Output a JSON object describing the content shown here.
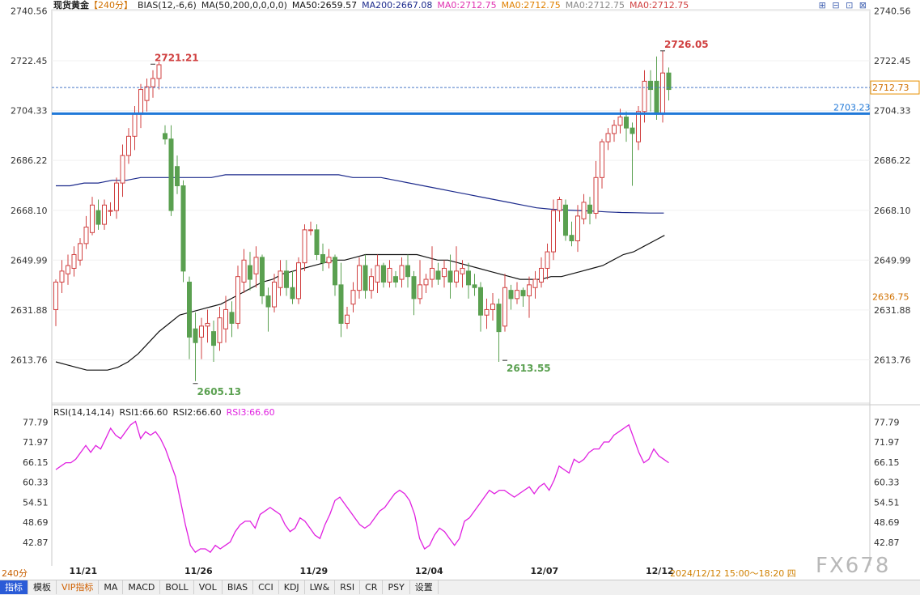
{
  "header": {
    "symbol": "现货黄金",
    "period": "【240分】",
    "bias": "BIAS(12,-6,6)",
    "ma_label": "MA(50,200,0,0,0,0)",
    "ma50": "MA50:2659.57",
    "ma200": "MA200:2667.08",
    "ma0_a": "MA0:2712.75",
    "ma0_b": "MA0:2712.75",
    "ma0_c": "MA0:2712.75",
    "ma0_d": "MA0:2712.75"
  },
  "rsi_header": {
    "label": "RSI(14,14,14)",
    "rsi1": "RSI1:66.60",
    "rsi2": "RSI2:66.60",
    "rsi3": "RSI3:66.60"
  },
  "period_label": "240分",
  "date_info": "2024/12/12 15:00～18:20 四",
  "watermark": "FX678",
  "tabs": [
    "指标",
    "模板",
    "VIP指标",
    "MA",
    "MACD",
    "BOLL",
    "VOL",
    "BIAS",
    "CCI",
    "KDJ",
    "LW&",
    "RSI",
    "CR",
    "PSY",
    "设置"
  ],
  "colors": {
    "up": "#d04040",
    "down": "#5aa050",
    "ma50": "#111111",
    "ma200": "#1c2a8c",
    "support": "#1f78d8",
    "rsi": "#e020e0"
  },
  "chart_data": [
    {
      "type": "candlestick",
      "title": "",
      "y_ticks": [
        "2740.56",
        "2722.45",
        "2704.33",
        "2686.22",
        "2668.10",
        "2649.99",
        "2631.88",
        "2613.76"
      ],
      "ylim": [
        2598,
        2741
      ],
      "x_labels": [
        "11/21",
        "11/26",
        "11/29",
        "12/04",
        "12/07",
        "12/12"
      ],
      "x_label_index": [
        3,
        22,
        41,
        60,
        79,
        98
      ],
      "annotations": [
        {
          "text": "2721.21",
          "index": 16,
          "value": 2721.21
        },
        {
          "text": "2726.05",
          "index": 100,
          "value": 2726.05
        },
        {
          "text": "2605.13",
          "index": 23,
          "value": 2605.13
        },
        {
          "text": "2613.55",
          "index": 74,
          "value": 2613.55
        }
      ],
      "last_price": "2712.73",
      "last_price_value": 2712.73,
      "support_level": "2703.23",
      "support_value": 2703.23,
      "ma_tag": "2636.75",
      "ma_tag_value": 2636.75,
      "candles": [
        [
          2632,
          2642,
          2626,
          2643
        ],
        [
          2642,
          2646,
          2638,
          2650
        ],
        [
          2645,
          2648,
          2641,
          2652
        ],
        [
          2647,
          2652,
          2644,
          2655
        ],
        [
          2650,
          2656,
          2648,
          2658
        ],
        [
          2656,
          2662,
          2654,
          2666
        ],
        [
          2660,
          2670,
          2659,
          2673
        ],
        [
          2668,
          2663,
          2661,
          2672
        ],
        [
          2663,
          2670,
          2661,
          2672
        ],
        [
          2668,
          2668,
          2666,
          2671
        ],
        [
          2668,
          2678,
          2665,
          2680
        ],
        [
          2678,
          2688,
          2673,
          2692
        ],
        [
          2688,
          2695,
          2685,
          2698
        ],
        [
          2695,
          2703,
          2690,
          2706
        ],
        [
          2703,
          2712,
          2698,
          2714
        ],
        [
          2708,
          2713,
          2704,
          2716
        ],
        [
          2713,
          2716,
          2709,
          2719
        ],
        [
          2716,
          2721,
          2712,
          2722
        ],
        [
          2696,
          2694,
          2692,
          2699
        ],
        [
          2694,
          2668,
          2666,
          2699
        ],
        [
          2684,
          2677,
          2674,
          2688
        ],
        [
          2677,
          2646,
          2642,
          2679
        ],
        [
          2642,
          2622,
          2614,
          2644
        ],
        [
          2625,
          2620,
          2606,
          2631
        ],
        [
          2622,
          2626,
          2614,
          2629
        ],
        [
          2626,
          2627,
          2620,
          2632
        ],
        [
          2624,
          2619,
          2613,
          2628
        ],
        [
          2620,
          2629,
          2617,
          2633
        ],
        [
          2625,
          2632,
          2620,
          2637
        ],
        [
          2631,
          2627,
          2622,
          2635
        ],
        [
          2627,
          2644,
          2625,
          2648
        ],
        [
          2642,
          2650,
          2638,
          2654
        ],
        [
          2648,
          2643,
          2639,
          2653
        ],
        [
          2645,
          2651,
          2640,
          2655
        ],
        [
          2651,
          2637,
          2634,
          2652
        ],
        [
          2637,
          2633,
          2624,
          2640
        ],
        [
          2633,
          2642,
          2631,
          2645
        ],
        [
          2640,
          2646,
          2637,
          2650
        ],
        [
          2646,
          2640,
          2637,
          2650
        ],
        [
          2640,
          2636,
          2634,
          2646
        ],
        [
          2636,
          2649,
          2634,
          2651
        ],
        [
          2649,
          2661,
          2646,
          2663
        ],
        [
          2661,
          2661,
          2659,
          2664
        ],
        [
          2661,
          2652,
          2650,
          2663
        ],
        [
          2652,
          2649,
          2646,
          2656
        ],
        [
          2649,
          2651,
          2647,
          2654
        ],
        [
          2651,
          2641,
          2637,
          2652
        ],
        [
          2641,
          2627,
          2622,
          2649
        ],
        [
          2627,
          2630,
          2625,
          2633
        ],
        [
          2634,
          2639,
          2631,
          2642
        ],
        [
          2639,
          2648,
          2636,
          2651
        ],
        [
          2648,
          2639,
          2636,
          2652
        ],
        [
          2639,
          2644,
          2636,
          2647
        ],
        [
          2642,
          2648,
          2638,
          2652
        ],
        [
          2648,
          2642,
          2640,
          2649
        ],
        [
          2642,
          2647,
          2640,
          2650
        ],
        [
          2644,
          2642,
          2640,
          2646
        ],
        [
          2643,
          2648,
          2640,
          2651
        ],
        [
          2648,
          2644,
          2640,
          2652
        ],
        [
          2644,
          2636,
          2630,
          2646
        ],
        [
          2636,
          2641,
          2634,
          2650
        ],
        [
          2641,
          2643,
          2638,
          2645
        ],
        [
          2643,
          2647,
          2640,
          2655
        ],
        [
          2646,
          2643,
          2641,
          2649
        ],
        [
          2644,
          2647,
          2640,
          2650
        ],
        [
          2646,
          2642,
          2636,
          2652
        ],
        [
          2642,
          2646,
          2640,
          2655
        ],
        [
          2645,
          2647,
          2640,
          2650
        ],
        [
          2646,
          2641,
          2636,
          2649
        ],
        [
          2641,
          2640,
          2637,
          2645
        ],
        [
          2640,
          2630,
          2624,
          2642
        ],
        [
          2630,
          2632,
          2625,
          2636
        ],
        [
          2632,
          2634,
          2628,
          2638
        ],
        [
          2634,
          2624,
          2613,
          2636
        ],
        [
          2626,
          2640,
          2624,
          2645
        ],
        [
          2639,
          2636,
          2632,
          2641
        ],
        [
          2636,
          2639,
          2634,
          2642
        ],
        [
          2639,
          2637,
          2633,
          2640
        ],
        [
          2637,
          2641,
          2629,
          2644
        ],
        [
          2640,
          2643,
          2636,
          2646
        ],
        [
          2642,
          2647,
          2640,
          2651
        ],
        [
          2647,
          2653,
          2643,
          2656
        ],
        [
          2653,
          2668,
          2650,
          2672
        ],
        [
          2668,
          2672,
          2664,
          2673
        ],
        [
          2670,
          2659,
          2657,
          2672
        ],
        [
          2659,
          2657,
          2655,
          2664
        ],
        [
          2657,
          2666,
          2653,
          2670
        ],
        [
          2665,
          2671,
          2663,
          2674
        ],
        [
          2670,
          2667,
          2663,
          2673
        ],
        [
          2667,
          2680,
          2665,
          2686
        ],
        [
          2680,
          2693,
          2676,
          2694
        ],
        [
          2693,
          2696,
          2690,
          2698
        ],
        [
          2696,
          2699,
          2693,
          2701
        ],
        [
          2699,
          2702,
          2696,
          2705
        ],
        [
          2702,
          2698,
          2693,
          2704
        ],
        [
          2698,
          2696,
          2677,
          2700
        ],
        [
          2693,
          2704,
          2690,
          2706
        ],
        [
          2704,
          2715,
          2700,
          2719
        ],
        [
          2715,
          2712,
          2704,
          2719
        ],
        [
          2715,
          2703,
          2701,
          2724
        ],
        [
          2703,
          2718,
          2700,
          2726
        ],
        [
          2718,
          2712,
          2708,
          2720
        ]
      ],
      "ma50": [
        2613,
        2612,
        2611,
        2610,
        2610,
        2610,
        2611,
        2613,
        2616,
        2620,
        2624,
        2627,
        2630,
        2631,
        2632,
        2633,
        2634,
        2636,
        2638,
        2640,
        2642,
        2643,
        2645,
        2646,
        2647,
        2648,
        2649,
        2650,
        2650,
        2651,
        2652,
        2652,
        2652,
        2652,
        2652,
        2652,
        2651,
        2650,
        2650,
        2649,
        2648,
        2647,
        2646,
        2645,
        2644,
        2643,
        2643,
        2643,
        2644,
        2644,
        2645,
        2646,
        2647,
        2648,
        2650,
        2652,
        2653,
        2655,
        2657,
        2659
      ],
      "ma50_start": 0,
      "ma50_step": 1.7,
      "ma200": [
        2677,
        2677,
        2678,
        2678,
        2679,
        2679,
        2680,
        2680,
        2680,
        2680,
        2680,
        2680,
        2681,
        2681,
        2681,
        2681,
        2681,
        2681,
        2681,
        2681,
        2681,
        2680,
        2680,
        2680,
        2679,
        2678,
        2677,
        2676,
        2675,
        2674,
        2673,
        2672,
        2671,
        2670,
        2669,
        2668.5,
        2668.2,
        2668,
        2667.8,
        2667.5,
        2667.3,
        2667.2,
        2667.1,
        2667.08
      ],
      "ma200_start": 0,
      "ma200_step": 2.33
    },
    {
      "type": "line",
      "title": "",
      "y_ticks": [
        "77.79",
        "71.97",
        "66.15",
        "60.33",
        "54.51",
        "48.69",
        "42.87"
      ],
      "ylim": [
        37,
        80
      ],
      "series": [
        {
          "name": "RSI1",
          "values": [
            64,
            65,
            66,
            66,
            67,
            69,
            71,
            69,
            71,
            70,
            73,
            76,
            74,
            73,
            75,
            77,
            78,
            73,
            75,
            74,
            75,
            73,
            70,
            66,
            62,
            55,
            48,
            42,
            40,
            41,
            41,
            40,
            42,
            41,
            42,
            43,
            46,
            48,
            49,
            49,
            47,
            51,
            52,
            53,
            52,
            51,
            48,
            46,
            47,
            50,
            49,
            47,
            45,
            44,
            48,
            51,
            55,
            56,
            54,
            52,
            50,
            48,
            47,
            48,
            50,
            52,
            53,
            55,
            57,
            58,
            57,
            55,
            51,
            44,
            41,
            42,
            45,
            47,
            46,
            44,
            42,
            44,
            49,
            50,
            52,
            54,
            56,
            58,
            57,
            58,
            58,
            57,
            56,
            57,
            58,
            59,
            57,
            59,
            60,
            58,
            61,
            65,
            64,
            63,
            67,
            66,
            67,
            69,
            70,
            70,
            72,
            72,
            74,
            75,
            76,
            77,
            73,
            69,
            66,
            67,
            70,
            68,
            67,
            66
          ]
        }
      ]
    }
  ]
}
